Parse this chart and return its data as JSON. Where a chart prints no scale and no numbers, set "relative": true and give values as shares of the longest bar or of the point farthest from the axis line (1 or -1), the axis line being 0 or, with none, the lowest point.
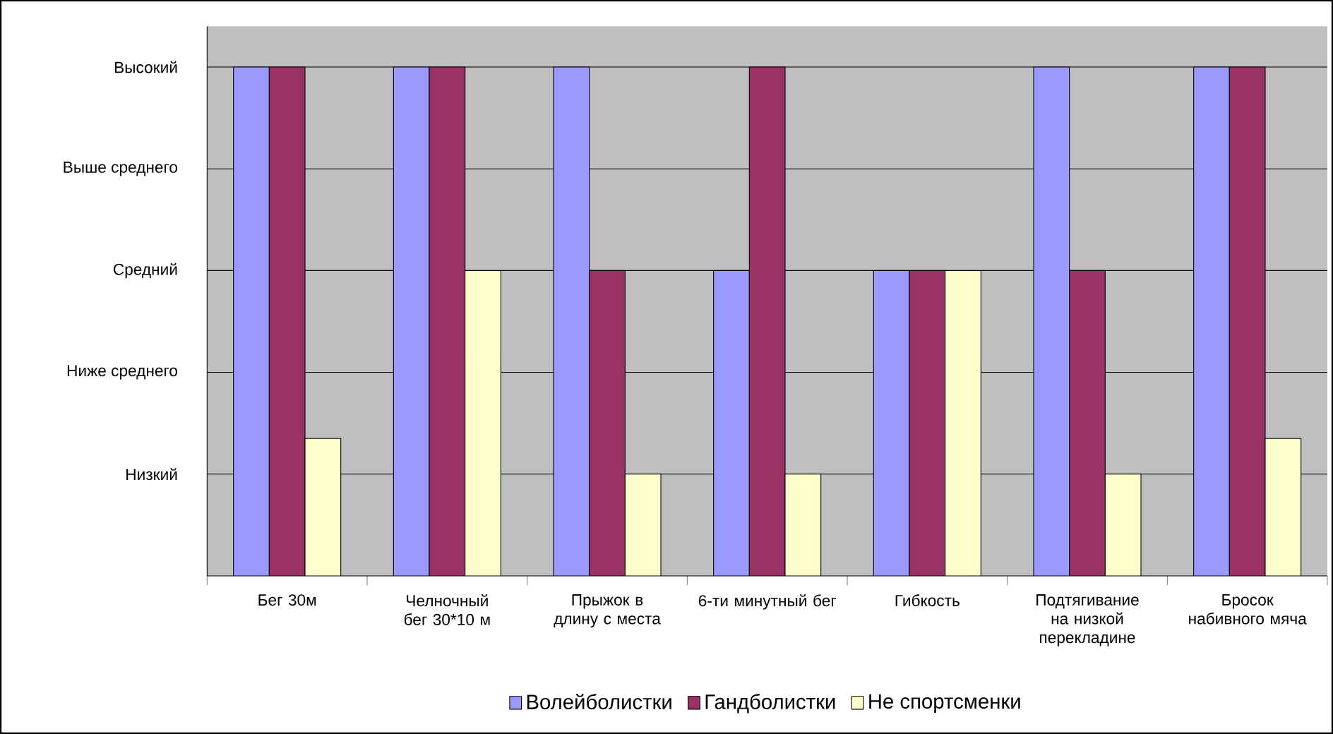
{
  "chart_data": {
    "type": "bar",
    "relative": true,
    "categories": [
      "Бег 30м",
      "Челночный бег 30*10 м",
      "Прыжок в длину с места",
      "6-ти минутный бег",
      "Гибкость",
      "Подтягивание на низкой перекладине",
      "Бросок набивного мяча"
    ],
    "series": [
      {
        "name": "Волейболистки",
        "color": "#9999ff",
        "values": [
          1,
          1,
          1,
          0.6,
          0.6,
          1,
          1
        ]
      },
      {
        "name": "Гандболистки",
        "color": "#993366",
        "values": [
          1,
          1,
          0.6,
          1,
          0.6,
          0.6,
          1
        ]
      },
      {
        "name": "Не спортсменки",
        "color": "#ffffcc",
        "values": [
          0.27,
          0.6,
          0.2,
          0.2,
          0.6,
          0.2,
          0.27
        ]
      }
    ],
    "annotations": [
      "Низкий",
      "Ниже среднего",
      "Средний",
      "Выше среднего",
      "Высокий"
    ],
    "grid": "y",
    "legend": "bottom"
  }
}
